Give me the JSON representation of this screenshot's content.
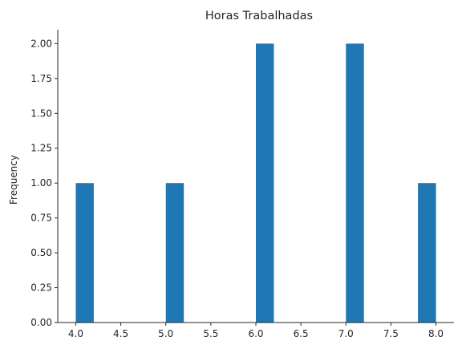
{
  "chart_data": {
    "type": "bar",
    "title": "Horas Trabalhadas",
    "xlabel": "",
    "ylabel": "Frequency",
    "xlim": [
      3.8,
      8.2
    ],
    "ylim": [
      0,
      2.1
    ],
    "bar_width": 0.2,
    "bars": [
      {
        "x": 4.0,
        "value": 1
      },
      {
        "x": 5.0,
        "value": 1
      },
      {
        "x": 6.0,
        "value": 2
      },
      {
        "x": 7.0,
        "value": 2
      },
      {
        "x": 7.8,
        "value": 1
      }
    ],
    "x_ticks": [
      "4.0",
      "4.5",
      "5.0",
      "5.5",
      "6.0",
      "6.5",
      "7.0",
      "7.5",
      "8.0"
    ],
    "y_ticks": [
      "0.00",
      "0.25",
      "0.50",
      "0.75",
      "1.00",
      "1.25",
      "1.50",
      "1.75",
      "2.00"
    ],
    "grid": false,
    "bar_color": "#1f77b4"
  }
}
